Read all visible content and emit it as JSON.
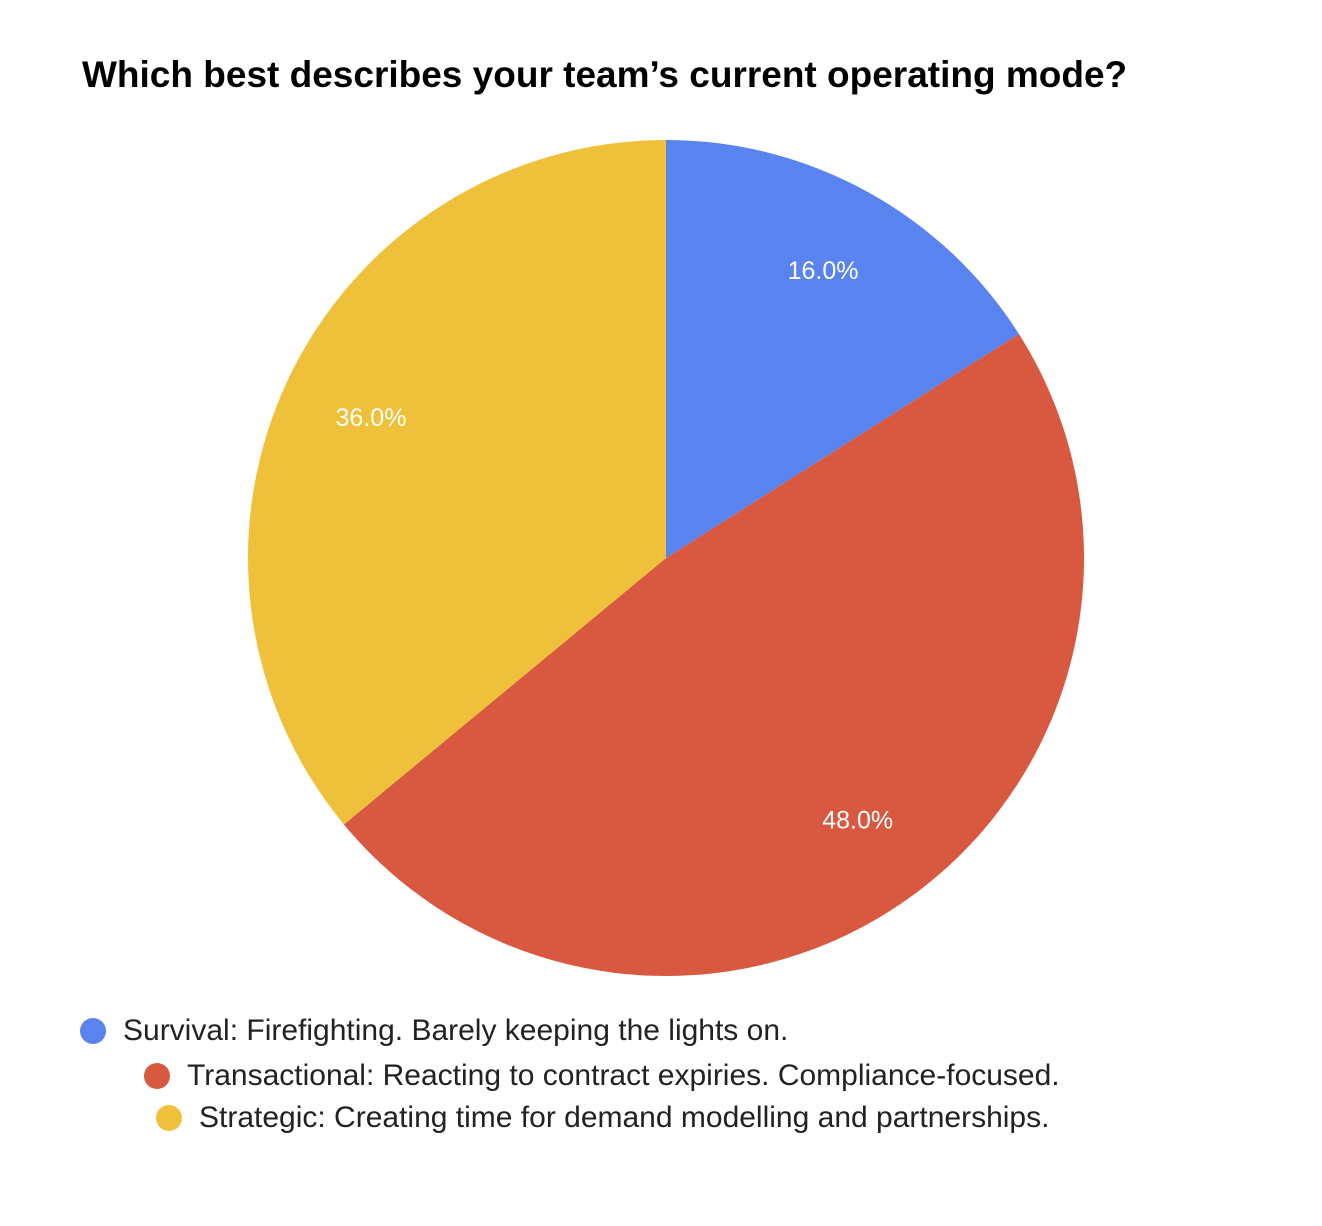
{
  "chart_data": {
    "type": "pie",
    "title": "Which best describes your team’s current operating mode?",
    "categories": [
      "Survival: Firefighting. Barely keeping the lights on.",
      "Transactional: Reacting to contract expiries. Compliance-focused.",
      "Strategic: Creating time for demand modelling and partnerships."
    ],
    "values": [
      16,
      48,
      36
    ],
    "value_labels": [
      "16.0%",
      "48.0%",
      "36.0%"
    ],
    "colors": [
      "#5983ee",
      "#d85840",
      "#efc13a"
    ]
  }
}
